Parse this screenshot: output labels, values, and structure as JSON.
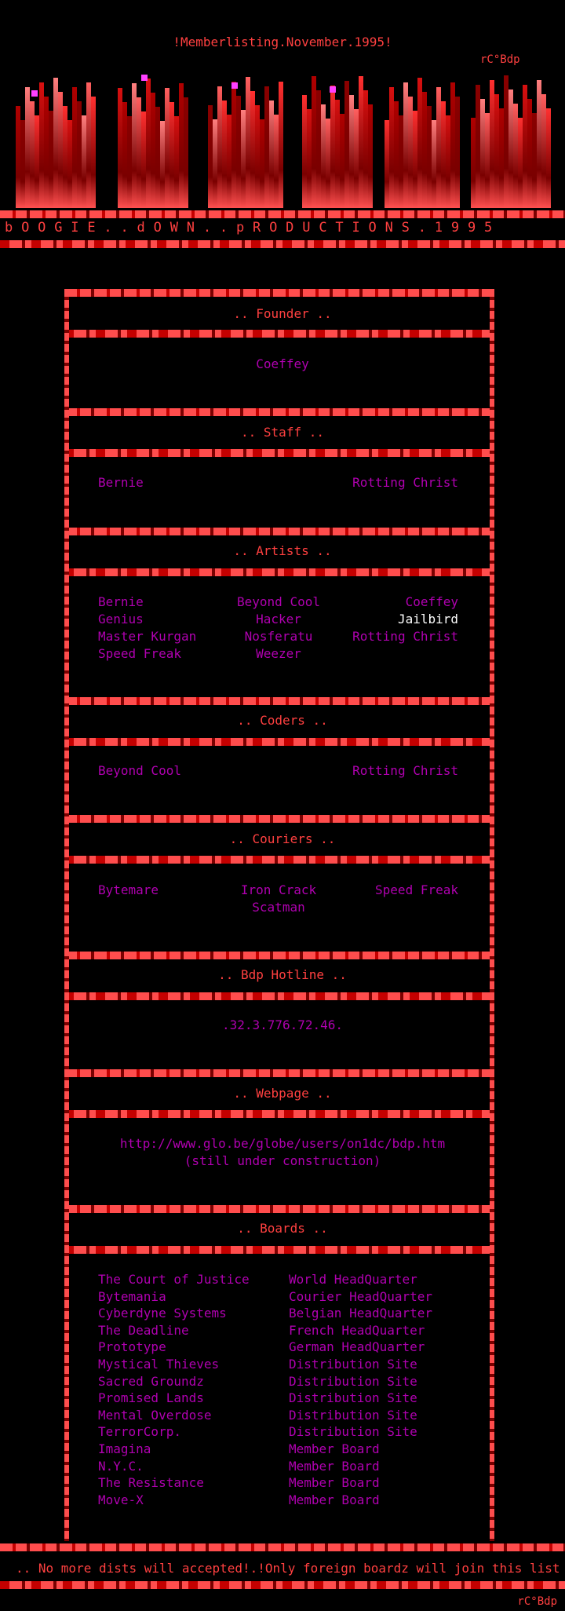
{
  "header": {
    "top_line": "!Memberlisting.November.1995!",
    "tag": "rC°Bdp",
    "group_name": "b O O G I E . . d O W N . . p R O D U C T I O N S . 1 9 9 5"
  },
  "sections": {
    "founder": {
      "title": ".. Founder ..",
      "members": [
        "Coeffey"
      ]
    },
    "staff": {
      "title": ".. Staff ..",
      "members": [
        "Bernie",
        "Rotting Christ"
      ]
    },
    "artists": {
      "title": ".. Artists ..",
      "rows": [
        [
          "Bernie",
          "Beyond Cool",
          "Coeffey"
        ],
        [
          "Genius",
          "Hacker",
          "Jailbird"
        ],
        [
          "Master Kurgan",
          "Nosferatu",
          "Rotting Christ"
        ],
        [
          "Speed Freak",
          "Weezer",
          ""
        ]
      ]
    },
    "coders": {
      "title": ".. Coders ..",
      "members": [
        "Beyond Cool",
        "Rotting Christ"
      ]
    },
    "couriers": {
      "title": ".. Couriers ..",
      "rows": [
        [
          "Bytemare",
          "Iron Crack",
          "Speed Freak"
        ],
        [
          "",
          "Scatman",
          ""
        ]
      ]
    },
    "hotline": {
      "title": ".. Bdp Hotline ..",
      "number": ".32.3.776.72.46."
    },
    "webpage": {
      "title": ".. Webpage ..",
      "url": "http://www.glo.be/globe/users/on1dc/bdp.htm",
      "note": "(still under construction)"
    },
    "boards": {
      "title": ".. Boards ..",
      "list": [
        {
          "name": "The Court of Justice",
          "type": "World HeadQuarter"
        },
        {
          "name": "Bytemania",
          "type": "Courier HeadQuarter"
        },
        {
          "name": "Cyberdyne Systems",
          "type": "Belgian HeadQuarter"
        },
        {
          "name": "The Deadline",
          "type": "French HeadQuarter"
        },
        {
          "name": "Prototype",
          "type": "German HeadQuarter"
        },
        {
          "name": "Mystical Thieves",
          "type": "Distribution Site"
        },
        {
          "name": "Sacred Groundz",
          "type": "Distribution Site"
        },
        {
          "name": "Promised Lands",
          "type": "Distribution Site"
        },
        {
          "name": "Mental Overdose",
          "type": "Distribution Site"
        },
        {
          "name": "TerrorCorp.",
          "type": "Distribution Site"
        },
        {
          "name": "Imagina",
          "type": "Member Board"
        },
        {
          "name": "N.Y.C.",
          "type": "Member Board"
        },
        {
          "name": "The Resistance",
          "type": "Member Board"
        },
        {
          "name": "Move-X",
          "type": "Member Board"
        }
      ]
    }
  },
  "footer": {
    "message": ".. No more dists will accepted!.!Only foreign boardz will join this list ..",
    "tag": "rC°Bdp"
  },
  "colors": {
    "background": "#000000",
    "accent_red": "#ff4040",
    "text_magenta": "#b000b0",
    "highlight": "#ffffff"
  }
}
